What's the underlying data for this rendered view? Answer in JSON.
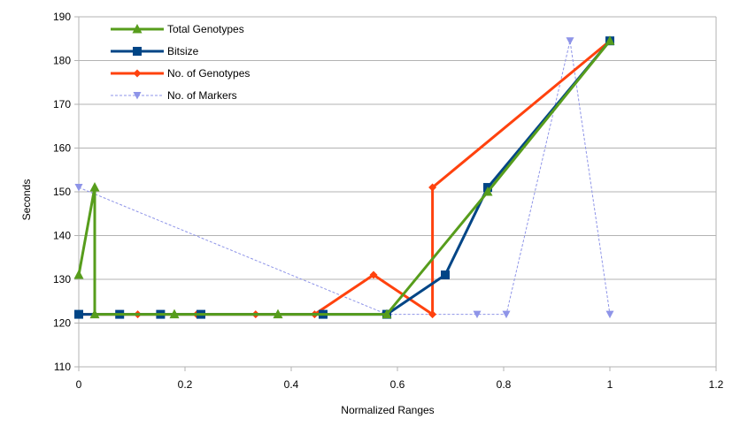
{
  "chart_data": {
    "type": "line",
    "xlabel": "Normalized Ranges",
    "ylabel": "Seconds",
    "xlim": [
      0,
      1.2
    ],
    "ylim": [
      110,
      190
    ],
    "x_ticks": [
      0,
      0.2,
      0.4,
      0.6,
      0.8,
      1,
      1.2
    ],
    "x_tick_labels": [
      "0",
      "0.2",
      "0.4",
      "0.6",
      "0.8",
      "1",
      "1.2"
    ],
    "y_ticks": [
      110,
      120,
      130,
      140,
      150,
      160,
      170,
      180,
      190
    ],
    "y_tick_labels": [
      "110",
      "120",
      "130",
      "140",
      "150",
      "160",
      "170",
      "180",
      "190"
    ],
    "grid": "horizontal",
    "legend_position": "top-left",
    "series": [
      {
        "name": "Total Genotypes",
        "color": "#579d1c",
        "marker": "triangle",
        "line": "solid",
        "points": [
          [
            0,
            131
          ],
          [
            0.03,
            151
          ],
          [
            0.03,
            122
          ],
          [
            0.18,
            122
          ],
          [
            0.375,
            122
          ],
          [
            0.58,
            122
          ],
          [
            0.77,
            150
          ],
          [
            1,
            184.5
          ]
        ]
      },
      {
        "name": "Bitsize",
        "color": "#004586",
        "marker": "square",
        "line": "solid",
        "points": [
          [
            0,
            122
          ],
          [
            0.077,
            122
          ],
          [
            0.154,
            122
          ],
          [
            0.23,
            122
          ],
          [
            0.46,
            122
          ],
          [
            0.58,
            122
          ],
          [
            0.69,
            131
          ],
          [
            0.77,
            151
          ],
          [
            1,
            184.5
          ]
        ]
      },
      {
        "name": "No. of Genotypes",
        "color": "#ff420e",
        "marker": "diamond",
        "line": "solid",
        "points": [
          [
            0,
            122
          ],
          [
            0.111,
            122
          ],
          [
            0.222,
            122
          ],
          [
            0.333,
            122
          ],
          [
            0.444,
            122
          ],
          [
            0.555,
            131
          ],
          [
            0.666,
            122
          ],
          [
            0.666,
            151
          ],
          [
            1,
            184.5
          ]
        ]
      },
      {
        "name": "No. of Markers",
        "color": "#8e94e8",
        "marker": "triangle-down",
        "line": "dashed",
        "points": [
          [
            0,
            151
          ],
          [
            0.58,
            122
          ],
          [
            0.75,
            122
          ],
          [
            0.805,
            122
          ],
          [
            0.925,
            184.5
          ],
          [
            1,
            122
          ]
        ]
      }
    ]
  }
}
